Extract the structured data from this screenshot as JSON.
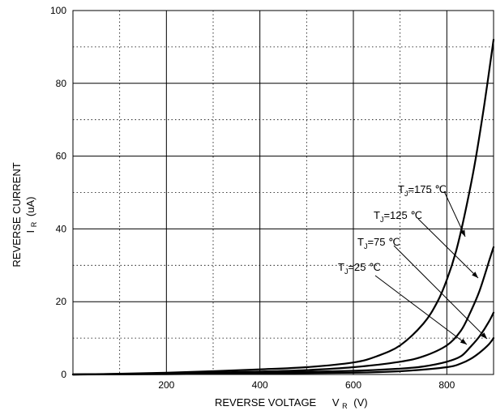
{
  "chart_data": {
    "type": "line",
    "xlabel": {
      "main": "REVERSE VOLTAGE",
      "symbol": "V",
      "sub": "R",
      "unit": "(V)"
    },
    "ylabel": {
      "line1": "REVERSE CURRENT",
      "symbol": "I",
      "sub": "R",
      "unit": "(uA)"
    },
    "xlim": [
      0,
      900
    ],
    "ylim": [
      0,
      100
    ],
    "x_ticks": [
      200,
      400,
      600,
      800
    ],
    "x_tick_labels": [
      "200",
      "400",
      "600",
      "800"
    ],
    "y_ticks": [
      0,
      20,
      40,
      60,
      80,
      100
    ],
    "y_tick_labels": [
      "0",
      "20",
      "40",
      "60",
      "80",
      "100"
    ],
    "grid": {
      "major": "solid",
      "minor": "dotted"
    },
    "series": [
      {
        "name": "TJ=175 ℃",
        "label": {
          "pre": "T",
          "sub": "J",
          "post": "=175 ℃"
        },
        "x": [
          0,
          100,
          200,
          300,
          400,
          500,
          600,
          650,
          700,
          750,
          780,
          800,
          820,
          840,
          860,
          880,
          900
        ],
        "y": [
          0,
          0.2,
          0.5,
          0.9,
          1.4,
          2.0,
          3.3,
          5.0,
          8.0,
          14,
          20,
          26,
          34,
          45,
          58,
          74,
          92
        ]
      },
      {
        "name": "TJ=125 ℃",
        "label": {
          "pre": "T",
          "sub": "J",
          "post": "=125 ℃"
        },
        "x": [
          0,
          200,
          400,
          500,
          600,
          700,
          750,
          800,
          830,
          850,
          870,
          890,
          900
        ],
        "y": [
          0,
          0.3,
          0.8,
          1.2,
          2.0,
          3.5,
          5.0,
          8.0,
          12,
          17,
          23,
          31,
          35
        ]
      },
      {
        "name": "TJ=75 ℃",
        "label": {
          "pre": "T",
          "sub": "J",
          "post": "=75 ℃"
        },
        "x": [
          0,
          200,
          400,
          600,
          700,
          750,
          800,
          830,
          850,
          870,
          890,
          900
        ],
        "y": [
          0,
          0.2,
          0.5,
          1.0,
          1.6,
          2.2,
          3.5,
          5.0,
          7.5,
          10.5,
          14.5,
          17
        ]
      },
      {
        "name": "TJ=25 ℃",
        "label": {
          "pre": "T",
          "sub": "J",
          "post": "=25 ℃"
        },
        "x": [
          0,
          200,
          400,
          600,
          700,
          800,
          830,
          850,
          870,
          890,
          900
        ],
        "y": [
          0,
          0.1,
          0.3,
          0.5,
          0.9,
          2.0,
          3.0,
          4.2,
          6.0,
          8.3,
          10
        ]
      }
    ]
  }
}
